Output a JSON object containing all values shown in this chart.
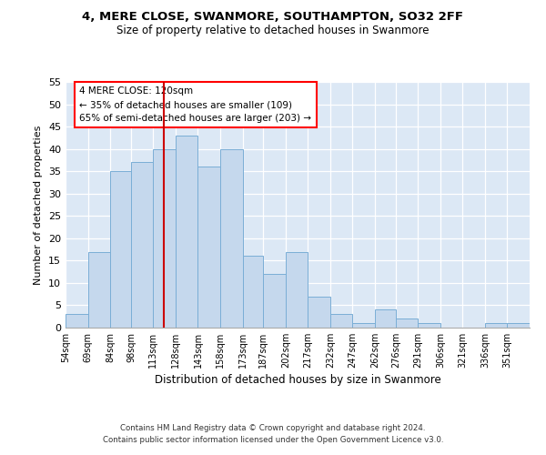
{
  "title": "4, MERE CLOSE, SWANMORE, SOUTHAMPTON, SO32 2FF",
  "subtitle": "Size of property relative to detached houses in Swanmore",
  "xlabel": "Distribution of detached houses by size in Swanmore",
  "ylabel": "Number of detached properties",
  "bar_color": "#c5d8ed",
  "bar_edge_color": "#7aaed6",
  "background_color": "#dce8f5",
  "annotation_text": "4 MERE CLOSE: 120sqm\n← 35% of detached houses are smaller (109)\n65% of semi-detached houses are larger (203) →",
  "vline_x": 120,
  "vline_color": "#cc0000",
  "categories": [
    "54sqm",
    "69sqm",
    "84sqm",
    "98sqm",
    "113sqm",
    "128sqm",
    "143sqm",
    "158sqm",
    "173sqm",
    "187sqm",
    "202sqm",
    "217sqm",
    "232sqm",
    "247sqm",
    "262sqm",
    "276sqm",
    "291sqm",
    "306sqm",
    "321sqm",
    "336sqm",
    "351sqm"
  ],
  "bin_edges": [
    54,
    69,
    84,
    98,
    113,
    128,
    143,
    158,
    173,
    187,
    202,
    217,
    232,
    247,
    262,
    276,
    291,
    306,
    321,
    336,
    351,
    366
  ],
  "values": [
    3,
    17,
    35,
    37,
    40,
    43,
    36,
    40,
    16,
    12,
    17,
    7,
    3,
    1,
    4,
    2,
    1,
    0,
    0,
    1,
    1
  ],
  "ylim": [
    0,
    55
  ],
  "yticks": [
    0,
    5,
    10,
    15,
    20,
    25,
    30,
    35,
    40,
    45,
    50,
    55
  ],
  "footer_line1": "Contains HM Land Registry data © Crown copyright and database right 2024.",
  "footer_line2": "Contains public sector information licensed under the Open Government Licence v3.0."
}
